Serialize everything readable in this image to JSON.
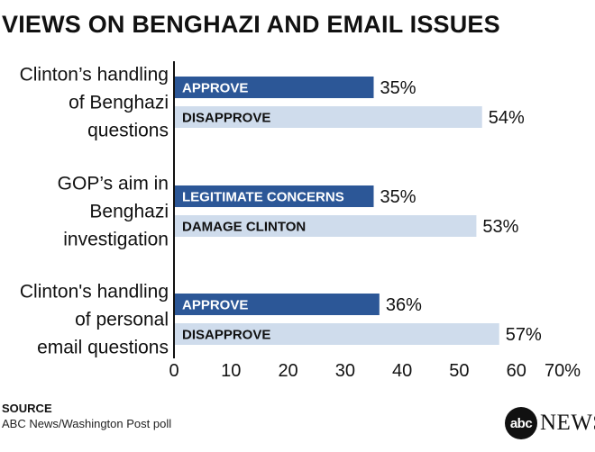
{
  "title": "VIEWS ON BENGHAZI AND EMAIL ISSUES",
  "source": {
    "label": "SOURCE",
    "text": "ABC News/Washington Post poll"
  },
  "logo": {
    "mark": "abc",
    "word": "NEWS"
  },
  "colors": {
    "dark": "#2c5797",
    "light": "#cfdcec",
    "axis": "#111111"
  },
  "chart_data": {
    "type": "bar",
    "orientation": "horizontal",
    "xlim": [
      0,
      70
    ],
    "x_ticks": [
      "0",
      "10",
      "20",
      "30",
      "40",
      "50",
      "60",
      "70%"
    ],
    "groups": [
      {
        "label_lines": [
          "Clinton’s handling",
          "of Benghazi",
          "questions"
        ],
        "bars": [
          {
            "label": "APPROVE",
            "value": 35,
            "value_label": "35%",
            "shade": "dark"
          },
          {
            "label": "DISAPPROVE",
            "value": 54,
            "value_label": "54%",
            "shade": "light"
          }
        ]
      },
      {
        "label_lines": [
          "GOP’s aim in",
          "Benghazi",
          "investigation"
        ],
        "bars": [
          {
            "label": "LEGITIMATE CONCERNS",
            "value": 35,
            "value_label": "35%",
            "shade": "dark"
          },
          {
            "label": "DAMAGE CLINTON",
            "value": 53,
            "value_label": "53%",
            "shade": "light"
          }
        ]
      },
      {
        "label_lines": [
          "Clinton's handling",
          "of personal",
          "email questions"
        ],
        "bars": [
          {
            "label": "APPROVE",
            "value": 36,
            "value_label": "36%",
            "shade": "dark"
          },
          {
            "label": "DISAPPROVE",
            "value": 57,
            "value_label": "57%",
            "shade": "light"
          }
        ]
      }
    ]
  }
}
